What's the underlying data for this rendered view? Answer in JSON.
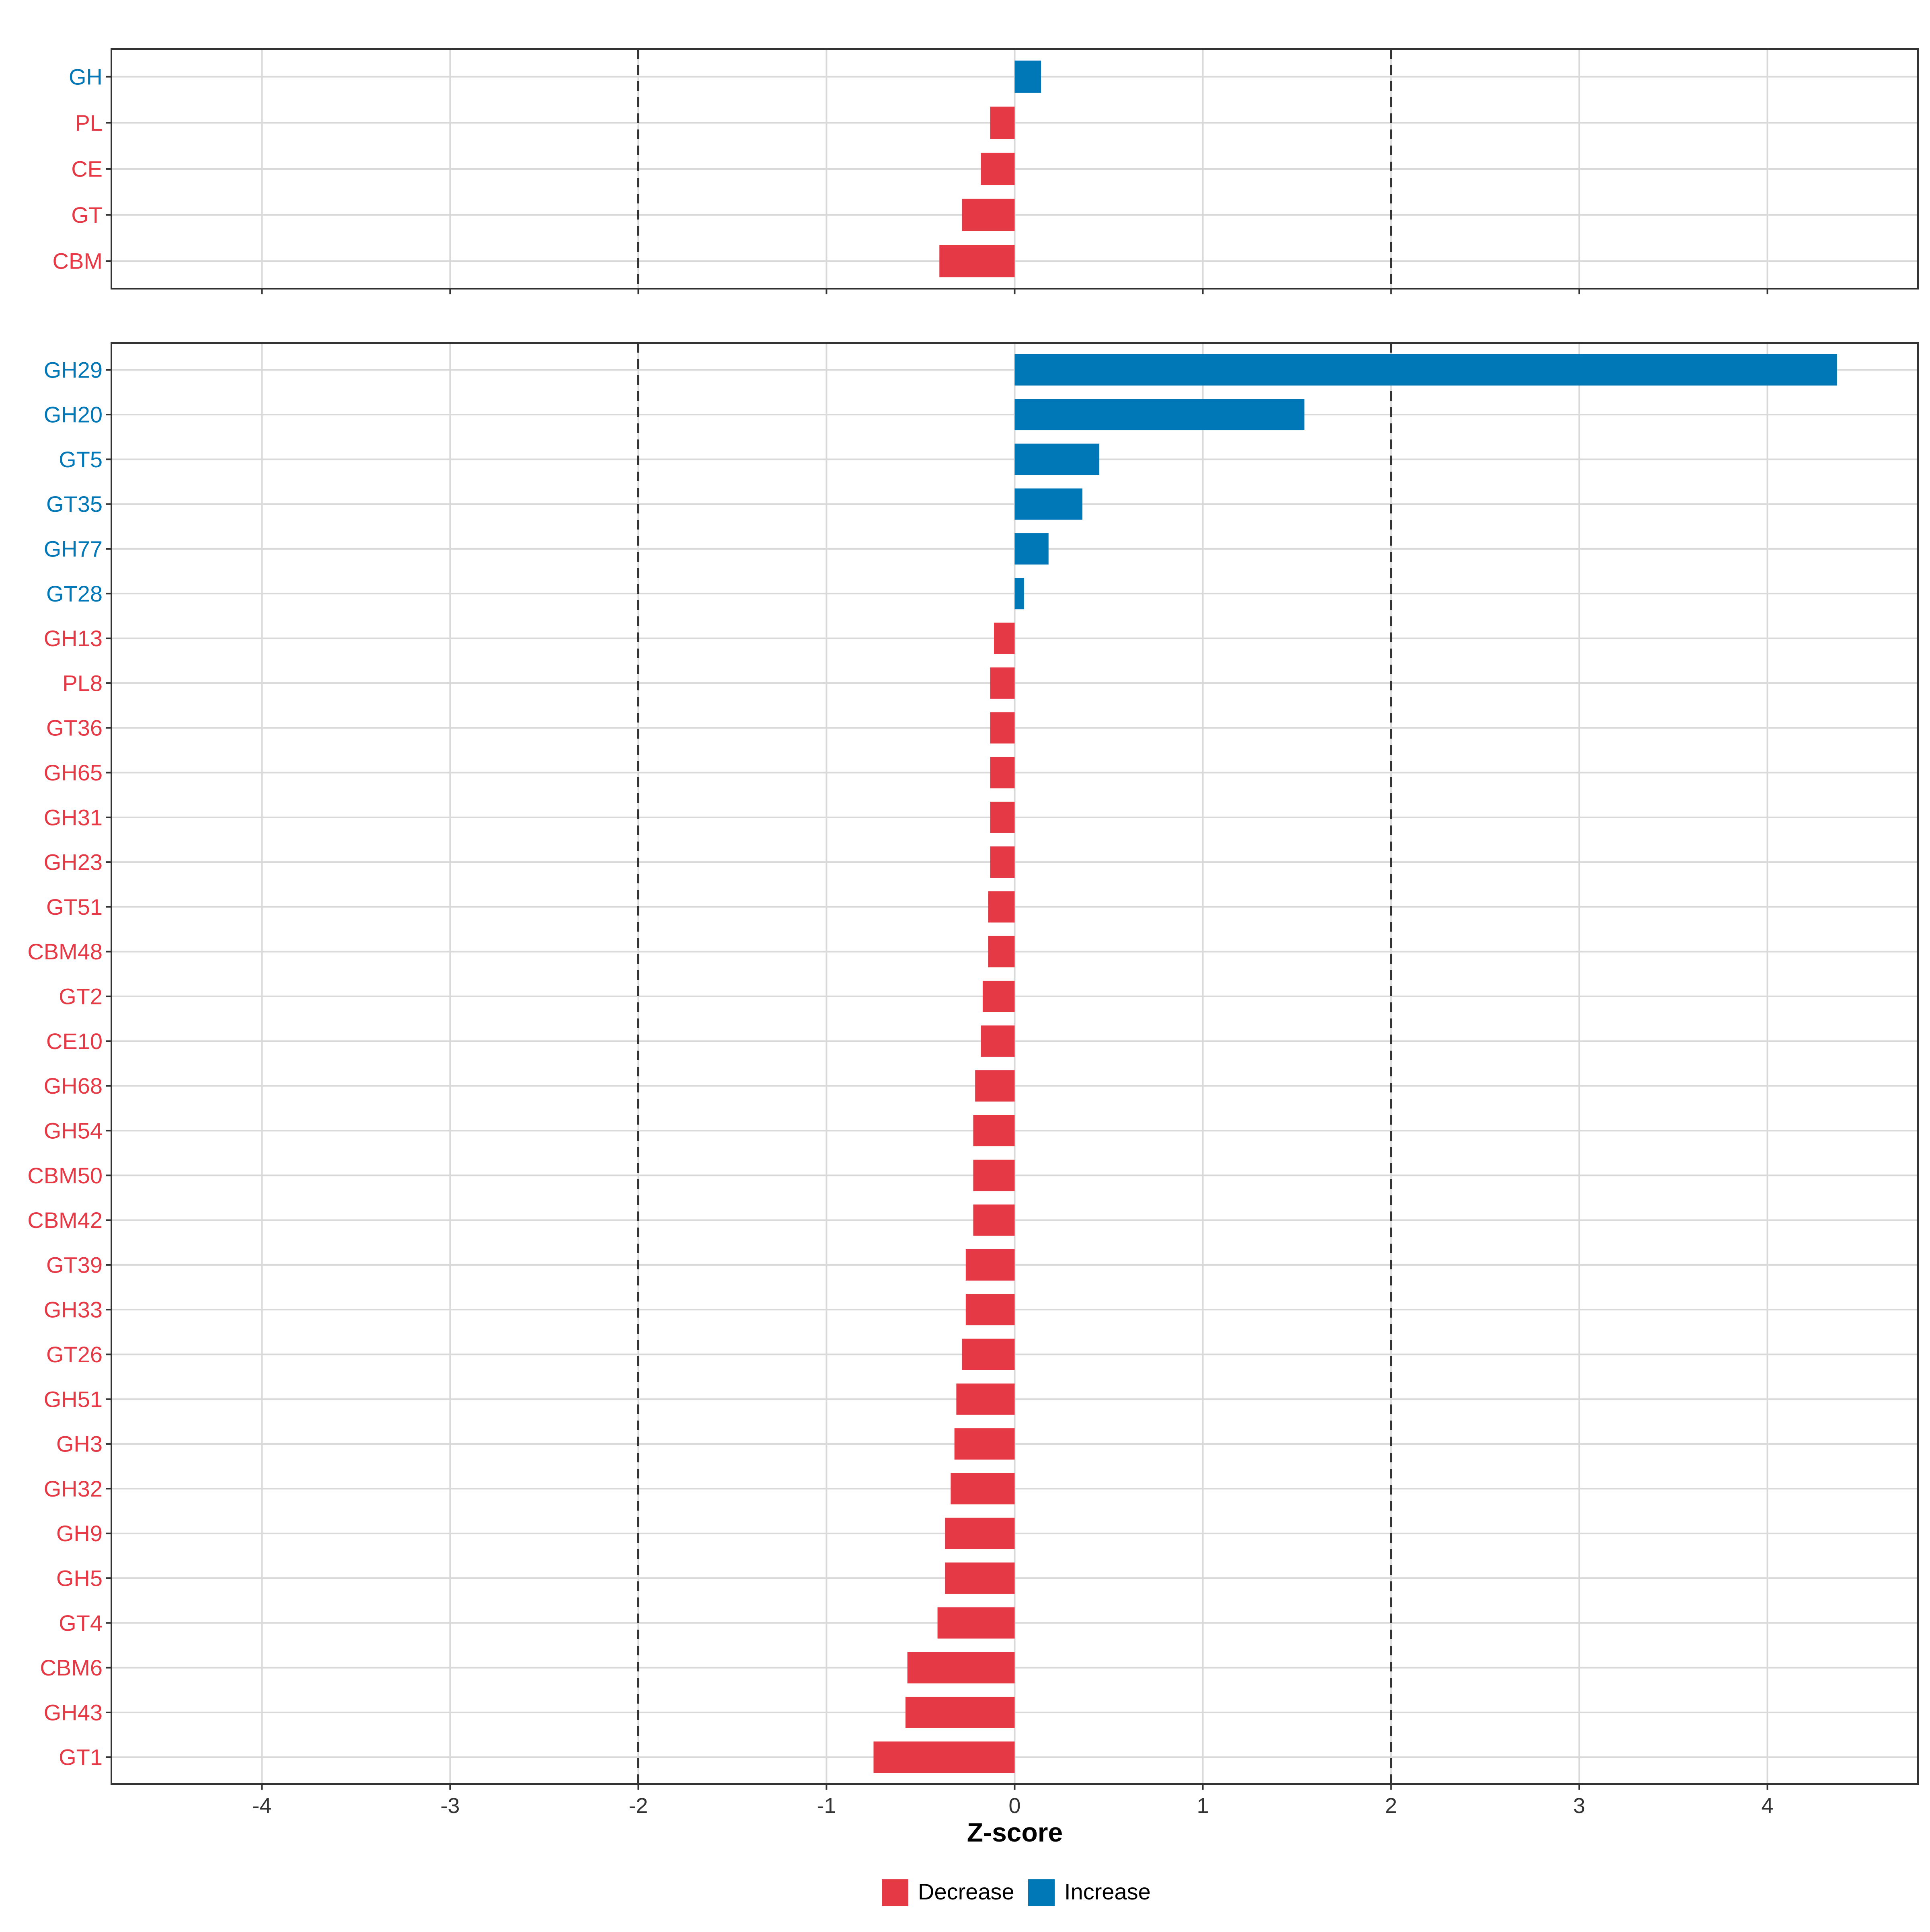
{
  "colors": {
    "decrease": "#E63946",
    "increase": "#0077B6",
    "grid": "#D9D9D9",
    "panel_border": "#333333",
    "ref_line": "#333333",
    "axis_text": "#333333"
  },
  "chart_data": [
    {
      "type": "bar",
      "orientation": "horizontal",
      "panel": "top",
      "categories": [
        "GH",
        "PL",
        "CE",
        "GT",
        "CBM"
      ],
      "values": [
        0.14,
        -0.13,
        -0.18,
        -0.28,
        -0.4
      ],
      "direction": [
        "Increase",
        "Decrease",
        "Decrease",
        "Decrease",
        "Decrease"
      ],
      "xlim": [
        -4.8,
        4.8
      ],
      "xticks_shown": false,
      "reference_lines": [
        -2,
        2
      ],
      "grid": true
    },
    {
      "type": "bar",
      "orientation": "horizontal",
      "panel": "bottom",
      "categories": [
        "GH29",
        "GH20",
        "GT5",
        "GT35",
        "GH77",
        "GT28",
        "GH13",
        "PL8",
        "GT36",
        "GH65",
        "GH31",
        "GH23",
        "GT51",
        "CBM48",
        "GT2",
        "CE10",
        "GH68",
        "GH54",
        "CBM50",
        "CBM42",
        "GT39",
        "GH33",
        "GT26",
        "GH51",
        "GH3",
        "GH32",
        "GH9",
        "GH5",
        "GT4",
        "CBM6",
        "GH43",
        "GT1"
      ],
      "values": [
        4.37,
        1.54,
        0.45,
        0.36,
        0.18,
        0.05,
        -0.11,
        -0.13,
        -0.13,
        -0.13,
        -0.13,
        -0.13,
        -0.14,
        -0.14,
        -0.17,
        -0.18,
        -0.21,
        -0.22,
        -0.22,
        -0.22,
        -0.26,
        -0.26,
        -0.28,
        -0.31,
        -0.32,
        -0.34,
        -0.37,
        -0.37,
        -0.41,
        -0.57,
        -0.58,
        -0.75
      ],
      "direction": [
        "Increase",
        "Increase",
        "Increase",
        "Increase",
        "Increase",
        "Increase",
        "Decrease",
        "Decrease",
        "Decrease",
        "Decrease",
        "Decrease",
        "Decrease",
        "Decrease",
        "Decrease",
        "Decrease",
        "Decrease",
        "Decrease",
        "Decrease",
        "Decrease",
        "Decrease",
        "Decrease",
        "Decrease",
        "Decrease",
        "Decrease",
        "Decrease",
        "Decrease",
        "Decrease",
        "Decrease",
        "Decrease",
        "Decrease",
        "Decrease",
        "Decrease"
      ],
      "xlim": [
        -4.8,
        4.8
      ],
      "xticks": [
        -4,
        -3,
        -2,
        -1,
        0,
        1,
        2,
        3,
        4
      ],
      "xtick_labels": [
        "-4",
        "-3",
        "-2",
        "-1",
        "0",
        "1",
        "2",
        "3",
        "4"
      ],
      "xlabel": "Z-score",
      "reference_lines": [
        -2,
        2
      ],
      "grid": true
    }
  ],
  "legend": {
    "position": "bottom",
    "items": [
      {
        "label": "Decrease",
        "color_key": "decrease"
      },
      {
        "label": "Increase",
        "color_key": "increase"
      }
    ]
  }
}
